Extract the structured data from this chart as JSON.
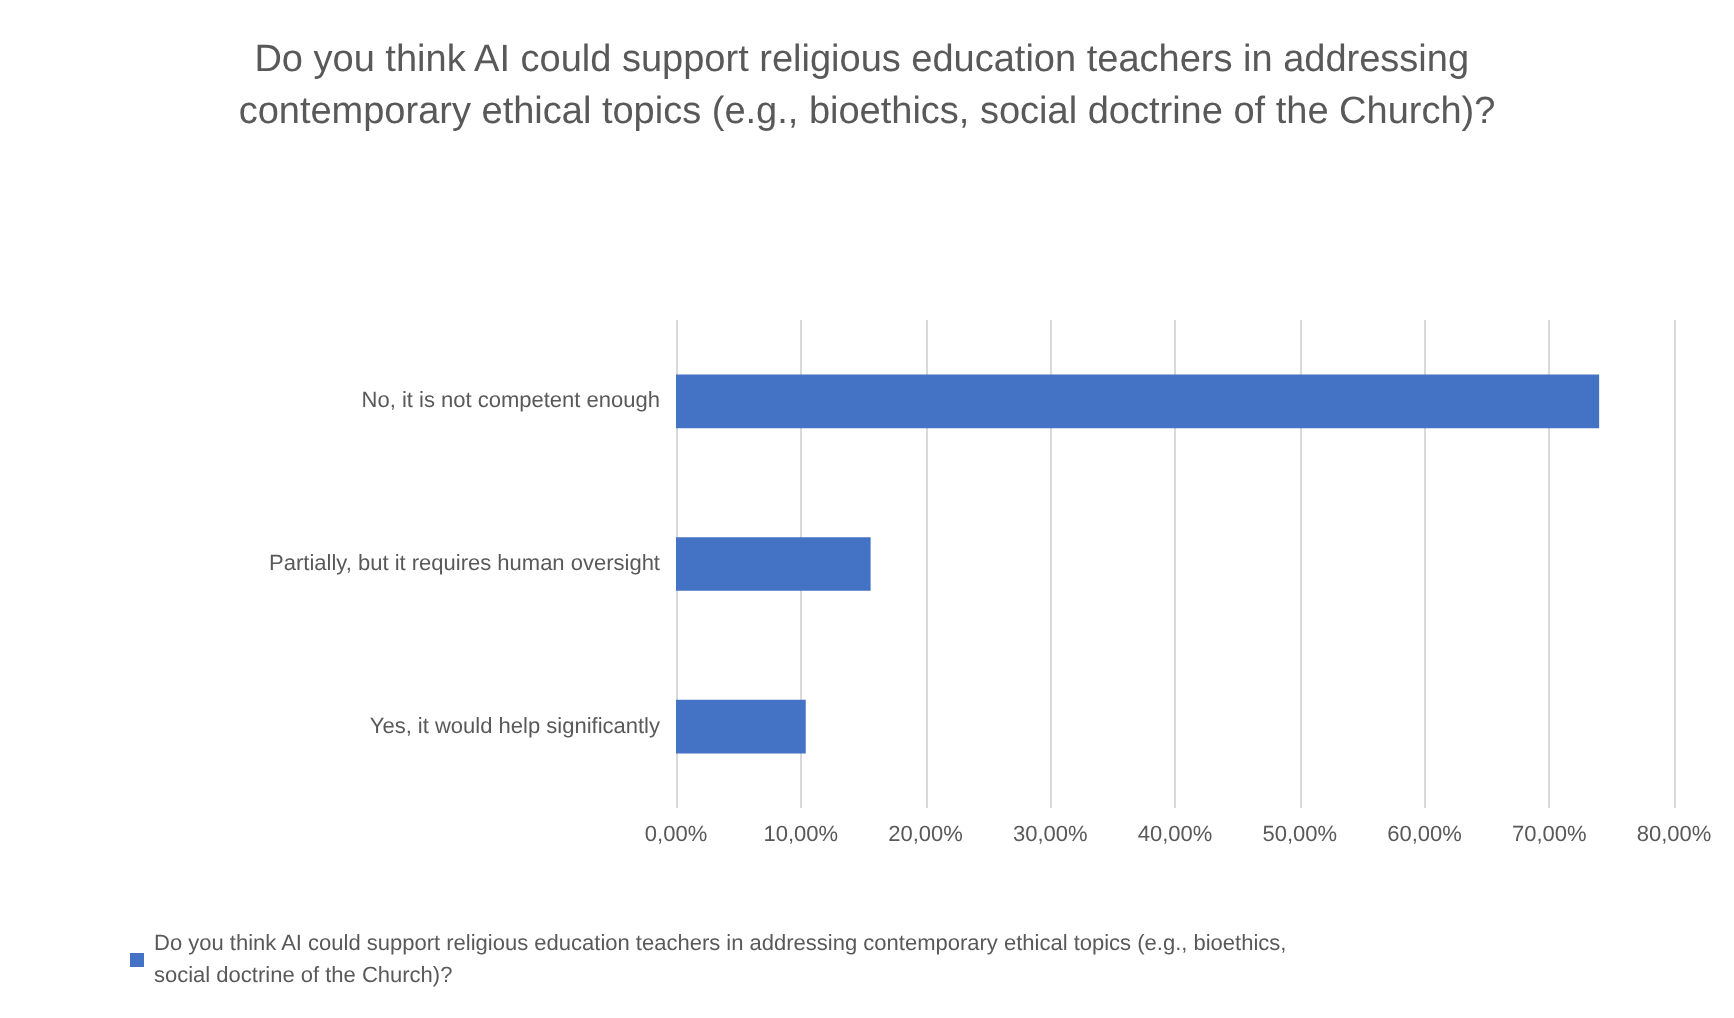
{
  "chart_data": {
    "type": "bar",
    "orientation": "horizontal",
    "title": "Do you think AI could support religious education teachers in addressing contemporary ethical topics (e.g., bioethics, social doctrine of the Church)?",
    "categories": [
      "No, it is not competent enough",
      "Partially, but it requires human oversight",
      "Yes, it would help significantly"
    ],
    "series": [
      {
        "name": "Do you think AI could support religious education teachers in addressing contemporary ethical topics (e.g., bioethics, social doctrine of the Church)?",
        "color": "#4472c4",
        "values": [
          74.0,
          15.6,
          10.4
        ]
      }
    ],
    "xlim": [
      0,
      80
    ],
    "xticks": [
      {
        "value": 0,
        "label": "0,00%"
      },
      {
        "value": 10,
        "label": "10,00%"
      },
      {
        "value": 20,
        "label": "20,00%"
      },
      {
        "value": 30,
        "label": "30,00%"
      },
      {
        "value": 40,
        "label": "40,00%"
      },
      {
        "value": 50,
        "label": "50,00%"
      },
      {
        "value": 60,
        "label": "60,00%"
      },
      {
        "value": 70,
        "label": "70,00%"
      },
      {
        "value": 80,
        "label": "80,00%"
      }
    ],
    "grid": "x",
    "legend": "bottom"
  }
}
